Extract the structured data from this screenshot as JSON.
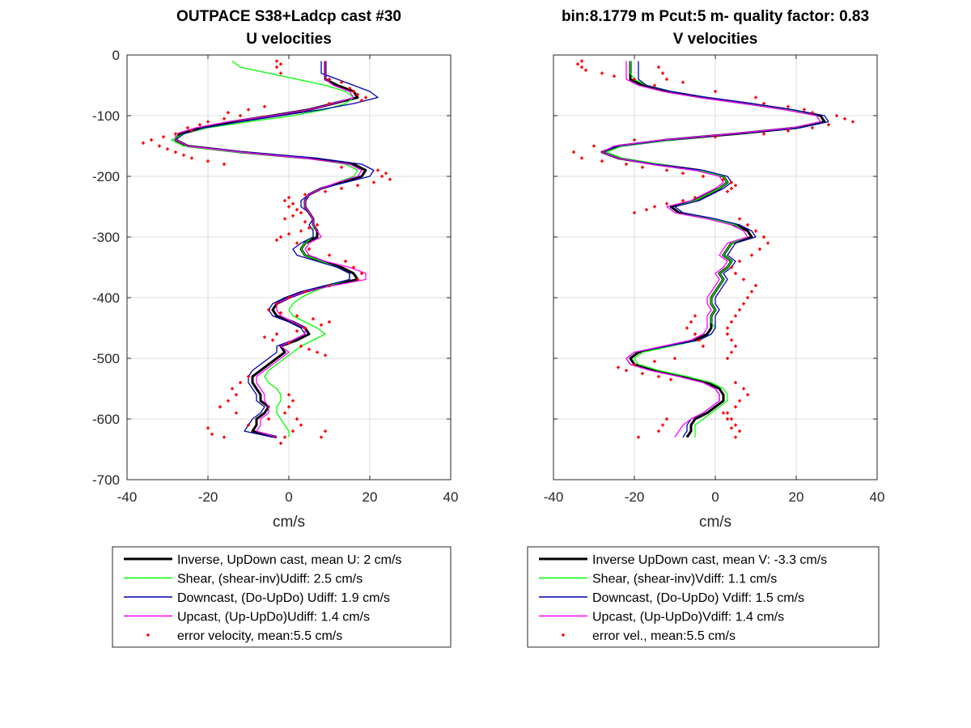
{
  "colors": {
    "inverse": "#000000",
    "shear": "#00ff00",
    "downcast": "#0000aa",
    "upcast": "#ff00ff",
    "error": "#ff0000"
  },
  "chart_data": [
    {
      "type": "line",
      "title": "OUTPACE S38+Ladcp cast #30",
      "subtitle": "U velocities",
      "xlabel": "cm/s",
      "ylabel": "",
      "xlim": [
        -40,
        40
      ],
      "ylim": [
        -700,
        0
      ],
      "xticks": [
        "-40",
        "-20",
        "0",
        "20",
        "40"
      ],
      "yticks": [
        "0",
        "-100",
        "-200",
        "-300",
        "-400",
        "-500",
        "-600",
        "-700"
      ],
      "grid": true,
      "legend_position": "below",
      "legend": [
        "Inverse, UpDown cast, mean U:  2 cm/s",
        "Shear, (shear-inv)Udiff:  2.5 cm/s",
        "Downcast, (Do-UpDo) Udiff:  1.9 cm/s",
        "Upcast, (Up-UpDo)Udiff:  1.4 cm/s",
        "error velocity, mean:5.5 cm/s"
      ],
      "depth": [
        -10,
        -20,
        -30,
        -40,
        -50,
        -60,
        -70,
        -80,
        -90,
        -100,
        -110,
        -120,
        -130,
        -140,
        -150,
        -160,
        -170,
        -180,
        -190,
        -200,
        -210,
        -220,
        -230,
        -240,
        -250,
        -260,
        -270,
        -280,
        -290,
        -300,
        -310,
        -320,
        -330,
        -340,
        -350,
        -360,
        -370,
        -380,
        -390,
        -400,
        -410,
        -420,
        -430,
        -440,
        -450,
        -460,
        -470,
        -480,
        -490,
        -500,
        -510,
        -520,
        -530,
        -540,
        -550,
        -560,
        -570,
        -580,
        -590,
        -600,
        -610,
        -620,
        -630
      ],
      "series": [
        {
          "name": "Inverse",
          "values": [
            9,
            9,
            9,
            9,
            12,
            16,
            17,
            11,
            5,
            -4,
            -14,
            -22,
            -27,
            -28,
            -25,
            -12,
            5,
            16,
            19,
            18,
            13,
            8,
            5,
            4,
            4,
            5,
            6,
            6,
            7,
            7,
            4,
            3,
            4,
            8,
            13,
            16,
            17,
            10,
            4,
            0,
            -3,
            -4,
            -3,
            1,
            4,
            5,
            2,
            -2,
            -1,
            -3,
            -5,
            -7,
            -9,
            -9,
            -8,
            -7,
            -7,
            -5,
            -6,
            -8,
            -8,
            -9,
            -3
          ]
        },
        {
          "name": "Shear",
          "values": [
            -14,
            -12,
            -5,
            2,
            9,
            14,
            16,
            14,
            9,
            1,
            -10,
            -20,
            -26,
            -29,
            -26,
            -13,
            4,
            14,
            17,
            16,
            12,
            8,
            5,
            4,
            4,
            5,
            6,
            6,
            6,
            6,
            4,
            3,
            4,
            8,
            12,
            15,
            15,
            10,
            6,
            3,
            1,
            0,
            1,
            4,
            7,
            9,
            6,
            3,
            1,
            -1,
            -3,
            -5,
            -6,
            -5,
            -3,
            -2,
            -2,
            -3,
            -3,
            -2,
            -1,
            0,
            0
          ]
        },
        {
          "name": "Downcast",
          "values": [
            8,
            8,
            8,
            12,
            16,
            20,
            22,
            16,
            8,
            -2,
            -12,
            -21,
            -26,
            -28,
            -25,
            -11,
            7,
            18,
            21,
            20,
            14,
            8,
            5,
            3,
            3,
            5,
            6,
            5,
            6,
            6,
            3,
            1,
            2,
            7,
            12,
            15,
            15,
            9,
            3,
            -1,
            -4,
            -5,
            -4,
            0,
            3,
            4,
            1,
            -3,
            -3,
            -5,
            -7,
            -9,
            -10,
            -10,
            -9,
            -8,
            -8,
            -6,
            -7,
            -9,
            -10,
            -11,
            -4
          ]
        },
        {
          "name": "Upcast",
          "values": [
            9,
            9,
            9,
            9,
            11,
            15,
            16,
            11,
            5,
            -4,
            -15,
            -23,
            -28,
            -28,
            -25,
            -12,
            4,
            15,
            18,
            17,
            12,
            8,
            5,
            4,
            4,
            5,
            6,
            6,
            7,
            8,
            5,
            4,
            5,
            9,
            15,
            19,
            19,
            11,
            4,
            0,
            -3,
            -3,
            -2,
            1,
            4,
            4,
            1,
            -2,
            0,
            -2,
            -4,
            -6,
            -8,
            -8,
            -7,
            -6,
            -6,
            -5,
            -5,
            -7,
            -7,
            -8,
            -3
          ]
        }
      ],
      "error_x": [
        -3,
        -2,
        -3,
        -2,
        10,
        13,
        15,
        16,
        17,
        19,
        18,
        10,
        -6,
        -10,
        -15,
        -12,
        -16,
        -20,
        -22,
        -25,
        -24,
        -28,
        -31,
        -34,
        -36,
        -32,
        -30,
        -28,
        -26,
        -24,
        -20,
        -16,
        13,
        22,
        24,
        23,
        25,
        21,
        17,
        13,
        9,
        4,
        0,
        -1,
        1,
        0,
        2,
        3,
        1,
        -1,
        4,
        7,
        5,
        3,
        0,
        -2,
        -3,
        2,
        5,
        10,
        14,
        16,
        18,
        17,
        10,
        4,
        0,
        -3,
        -5,
        -2,
        2,
        6,
        10,
        8,
        4,
        2,
        -3,
        -6,
        -4,
        0,
        3,
        5,
        7,
        9,
        -10,
        -12,
        -14,
        -13,
        -15,
        -17,
        -13,
        0,
        1,
        0,
        -1,
        2,
        3,
        1,
        -1,
        -2,
        -5,
        -10,
        -20,
        -19,
        -16,
        9,
        8
      ],
      "error_depth": [
        -10,
        -15,
        -20,
        -30,
        -40,
        -45,
        -55,
        -60,
        -65,
        -70,
        -75,
        -80,
        -85,
        -90,
        -95,
        -100,
        -105,
        -110,
        -115,
        -120,
        -125,
        -130,
        -135,
        -140,
        -145,
        -150,
        -155,
        -160,
        -165,
        -170,
        -175,
        -180,
        -185,
        -190,
        -195,
        -200,
        -205,
        -210,
        -215,
        -220,
        -225,
        -230,
        -235,
        -240,
        -245,
        -250,
        -255,
        -260,
        -265,
        -270,
        -275,
        -280,
        -285,
        -290,
        -295,
        -300,
        -305,
        -310,
        -320,
        -330,
        -340,
        -350,
        -360,
        -370,
        -380,
        -390,
        -400,
        -410,
        -420,
        -425,
        -430,
        -435,
        -440,
        -445,
        -450,
        -455,
        -460,
        -465,
        -470,
        -475,
        -480,
        -485,
        -490,
        -495,
        -530,
        -540,
        -550,
        -560,
        -570,
        -580,
        -590,
        -560,
        -570,
        -580,
        -590,
        -600,
        -610,
        -620,
        -630,
        -640,
        -600,
        -610,
        -615,
        -625,
        -630,
        -620,
        -630
      ]
    },
    {
      "type": "line",
      "title": "bin:8.1779 m  Pcut:5 m- quality factor:  0.83",
      "subtitle": "V velocities",
      "xlabel": "cm/s",
      "ylabel": "",
      "xlim": [
        -40,
        40
      ],
      "ylim": [
        -700,
        0
      ],
      "xticks": [
        "-40",
        "-20",
        "0",
        "20",
        "40"
      ],
      "yticks": [
        "0",
        "-100",
        "-200",
        "-300",
        "-400",
        "-500",
        "-600",
        "-700"
      ],
      "grid": true,
      "legend_position": "below",
      "legend": [
        "Inverse UpDown cast, mean V:  -3.3 cm/s",
        "Shear, (shear-inv)Vdiff:  1.1 cm/s",
        "Downcast, (Do-UpDo) Vdiff:  1.5 cm/s",
        "Upcast, (Up-UpDo)Vdiff:  1.4 cm/s",
        "error vel., mean:5.5 cm/s"
      ],
      "depth": [
        -10,
        -20,
        -30,
        -40,
        -50,
        -60,
        -70,
        -80,
        -90,
        -100,
        -110,
        -120,
        -130,
        -140,
        -150,
        -160,
        -170,
        -180,
        -190,
        -200,
        -210,
        -220,
        -230,
        -240,
        -250,
        -260,
        -270,
        -280,
        -290,
        -300,
        -310,
        -320,
        -330,
        -340,
        -350,
        -360,
        -370,
        -380,
        -390,
        -400,
        -410,
        -420,
        -430,
        -440,
        -450,
        -460,
        -470,
        -480,
        -490,
        -500,
        -510,
        -520,
        -530,
        -540,
        -550,
        -560,
        -570,
        -580,
        -590,
        -600,
        -610,
        -620,
        -630
      ],
      "series": [
        {
          "name": "Inverse",
          "values": [
            -21,
            -21,
            -21,
            -21,
            -18,
            -12,
            -3,
            8,
            18,
            26,
            27,
            20,
            5,
            -12,
            -24,
            -28,
            -24,
            -15,
            -4,
            2,
            3,
            1,
            -2,
            -5,
            -11,
            -9,
            -1,
            5,
            8,
            9,
            4,
            3,
            2,
            4,
            3,
            1,
            2,
            1,
            0,
            -1,
            -1,
            0,
            -1,
            -1,
            -1,
            -2,
            -5,
            -12,
            -19,
            -21,
            -20,
            -15,
            -8,
            -2,
            1,
            2,
            2,
            0,
            -2,
            -5,
            -6,
            -6,
            -7
          ]
        },
        {
          "name": "Shear",
          "values": [
            -21,
            -21,
            -21,
            -20,
            -17,
            -11,
            -2,
            8,
            18,
            25,
            26,
            19,
            5,
            -11,
            -23,
            -27,
            -23,
            -14,
            -4,
            2,
            3,
            1,
            -2,
            -5,
            -10,
            -8,
            -1,
            5,
            7,
            8,
            4,
            3,
            2,
            4,
            3,
            1,
            2,
            1,
            0,
            -1,
            -1,
            0,
            -1,
            -1,
            0,
            -1,
            -4,
            -11,
            -18,
            -20,
            -19,
            -14,
            -7,
            -1,
            2,
            3,
            3,
            1,
            -1,
            -3,
            -5,
            -5,
            -5
          ]
        },
        {
          "name": "Downcast",
          "values": [
            -19,
            -19,
            -19,
            -19,
            -17,
            -11,
            -2,
            9,
            19,
            27,
            28,
            21,
            5,
            -12,
            -24,
            -28,
            -24,
            -15,
            -3,
            3,
            4,
            2,
            -1,
            -4,
            -10,
            -8,
            0,
            6,
            9,
            10,
            5,
            4,
            3,
            5,
            4,
            2,
            3,
            2,
            1,
            0,
            0,
            1,
            0,
            0,
            0,
            -1,
            -4,
            -12,
            -20,
            -22,
            -21,
            -16,
            -9,
            -3,
            0,
            1,
            1,
            -1,
            -3,
            -6,
            -7,
            -7,
            -8
          ]
        },
        {
          "name": "Upcast",
          "values": [
            -22,
            -22,
            -22,
            -22,
            -19,
            -13,
            -4,
            7,
            17,
            25,
            26,
            19,
            4,
            -13,
            -25,
            -28,
            -24,
            -16,
            -5,
            1,
            2,
            0,
            -3,
            -6,
            -12,
            -10,
            -2,
            4,
            7,
            8,
            3,
            2,
            1,
            3,
            2,
            0,
            1,
            0,
            -1,
            -2,
            -2,
            -1,
            -2,
            -2,
            -2,
            -3,
            -6,
            -13,
            -20,
            -22,
            -21,
            -16,
            -9,
            -3,
            0,
            1,
            1,
            -1,
            -3,
            -6,
            -8,
            -9,
            -10
          ]
        }
      ],
      "error_x": [
        -33,
        -34,
        -33,
        -32,
        -28,
        -25,
        -20,
        -15,
        -14,
        -13,
        -12,
        -8,
        0,
        10,
        12,
        18,
        22,
        24,
        30,
        32,
        34,
        28,
        24,
        18,
        12,
        0,
        -20,
        -30,
        -35,
        -33,
        -28,
        -22,
        -18,
        -12,
        -8,
        -3,
        2,
        4,
        5,
        4,
        3,
        -5,
        -8,
        -12,
        -15,
        -17,
        -20,
        6,
        8,
        10,
        12,
        13,
        11,
        9,
        6,
        4,
        5,
        7,
        10,
        9,
        8,
        7,
        6,
        5,
        4,
        3,
        -5,
        -6,
        -7,
        -5,
        -4,
        -3,
        3,
        4,
        5,
        4,
        3,
        -10,
        -15,
        -20,
        -24,
        -22,
        -18,
        -14,
        -11,
        5,
        7,
        8,
        6,
        5,
        3,
        4,
        5,
        6,
        -12,
        -13,
        -14,
        -19,
        2,
        3,
        4,
        5
      ],
      "error_depth": [
        -10,
        -15,
        -20,
        -25,
        -30,
        -35,
        -40,
        -50,
        -20,
        -30,
        -40,
        -45,
        -60,
        -70,
        -80,
        -85,
        -90,
        -95,
        -100,
        -105,
        -110,
        -115,
        -120,
        -125,
        -130,
        -135,
        -140,
        -150,
        -160,
        -170,
        -175,
        -180,
        -185,
        -190,
        -195,
        -200,
        -205,
        -210,
        -215,
        -220,
        -225,
        -235,
        -240,
        -245,
        -250,
        -255,
        -260,
        -270,
        -280,
        -290,
        -300,
        -310,
        -320,
        -330,
        -340,
        -350,
        -360,
        -370,
        -380,
        -390,
        -400,
        -410,
        -420,
        -430,
        -440,
        -450,
        -430,
        -440,
        -450,
        -460,
        -470,
        -480,
        -460,
        -470,
        -480,
        -490,
        -500,
        -500,
        -505,
        -510,
        -515,
        -520,
        -525,
        -530,
        -535,
        -540,
        -550,
        -560,
        -570,
        -580,
        -590,
        -600,
        -610,
        -620,
        -600,
        -610,
        -620,
        -630,
        -590,
        -600,
        -615,
        -630
      ]
    }
  ]
}
